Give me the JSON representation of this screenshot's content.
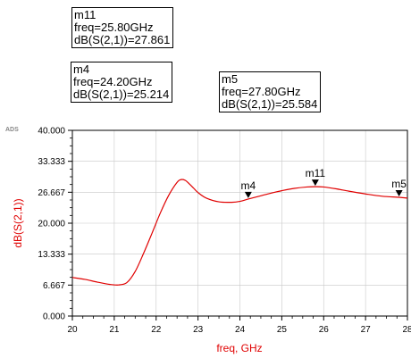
{
  "brand_label": "ADS",
  "markers": [
    {
      "id": "box-m11",
      "name": "m11",
      "freq_text": "freq=25.80GHz",
      "value_text": "dB(S(2,1))=27.861",
      "x": 25.8,
      "y": 27.861
    },
    {
      "id": "box-m4",
      "name": "m4",
      "freq_text": "freq=24.20GHz",
      "value_text": "dB(S(2,1))=25.214",
      "x": 24.2,
      "y": 25.214
    },
    {
      "id": "box-m5",
      "name": "m5",
      "freq_text": "freq=27.80GHz",
      "value_text": "dB(S(2,1))=25.584",
      "x": 27.8,
      "y": 25.584
    }
  ],
  "chart_data": {
    "type": "line",
    "xlabel": "freq, GHz",
    "ylabel": "dB(S(2,1))",
    "xlim": [
      20,
      28
    ],
    "ylim": [
      0,
      40
    ],
    "x_ticks": [
      "20",
      "21",
      "22",
      "23",
      "24",
      "25",
      "26",
      "27",
      "28"
    ],
    "y_ticks": [
      "0.000",
      "6.667",
      "13.333",
      "20.000",
      "26.667",
      "33.333",
      "40.000"
    ],
    "grid": true,
    "series_color": "#e00000",
    "series": [
      {
        "x": [
          20.0,
          20.3,
          20.6,
          20.9,
          21.1,
          21.3,
          21.5,
          21.7,
          21.9,
          22.1,
          22.3,
          22.5,
          22.6,
          22.7,
          22.8,
          22.9,
          23.0,
          23.2,
          23.5,
          23.8,
          24.0,
          24.2,
          24.5,
          24.8,
          25.0,
          25.3,
          25.6,
          25.8,
          26.0,
          26.3,
          26.6,
          27.0,
          27.4,
          27.8,
          28.0
        ],
        "y": [
          8.3,
          7.9,
          7.3,
          6.8,
          6.7,
          7.2,
          9.6,
          13.5,
          17.8,
          22.2,
          26.0,
          28.8,
          29.4,
          29.2,
          28.4,
          27.5,
          26.6,
          25.4,
          24.6,
          24.5,
          24.7,
          25.2,
          25.9,
          26.6,
          27.0,
          27.5,
          27.8,
          27.86,
          27.8,
          27.4,
          26.9,
          26.3,
          25.8,
          25.58,
          25.4
        ]
      }
    ]
  }
}
